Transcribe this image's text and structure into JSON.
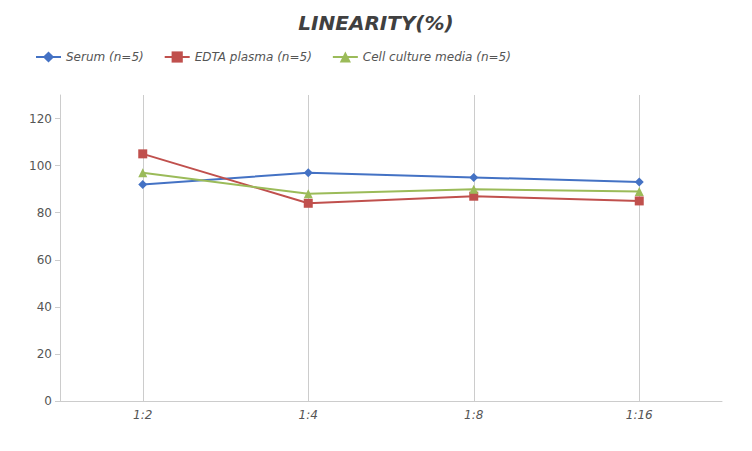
{
  "chart_data": {
    "type": "line",
    "title": "LINEARITY(%)",
    "categories": [
      "1:2",
      "1:4",
      "1:8",
      "1:16"
    ],
    "series": [
      {
        "name": "Serum (n=5)",
        "color": "#4472C4",
        "marker": "diamond",
        "values": [
          92,
          97,
          95,
          93
        ]
      },
      {
        "name": "EDTA plasma (n=5)",
        "color": "#C0504D",
        "marker": "square",
        "values": [
          105,
          84,
          87,
          85
        ]
      },
      {
        "name": "Cell culture media (n=5)",
        "color": "#9BBB59",
        "marker": "triangle",
        "values": [
          97,
          88,
          90,
          89
        ]
      }
    ],
    "ylim": [
      0,
      130
    ],
    "yticks": [
      0,
      20,
      40,
      60,
      80,
      100,
      120
    ],
    "grid": true,
    "legend": "upper left"
  }
}
